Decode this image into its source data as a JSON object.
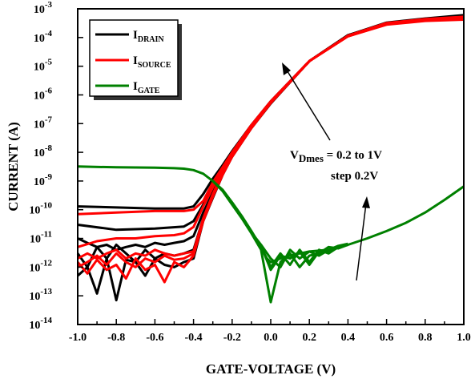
{
  "chart_data": {
    "type": "line",
    "xlabel": "GATE-VOLTAGE (V)",
    "ylabel": "CURRENT (A)",
    "xlim": [
      -1.0,
      1.0
    ],
    "ylim": [
      1e-14,
      0.001
    ],
    "yscale": "log",
    "grid": false,
    "legend_position": "top-left",
    "x_ticks": [
      "-1.0",
      "-0.8",
      "-0.6",
      "-0.4",
      "-0.2",
      "0.0",
      "0.2",
      "0.4",
      "0.6",
      "0.8",
      "1.0"
    ],
    "y_ticks": [
      {
        "base": "10",
        "exp": "-3"
      },
      {
        "base": "10",
        "exp": "-4"
      },
      {
        "base": "10",
        "exp": "-5"
      },
      {
        "base": "10",
        "exp": "-6"
      },
      {
        "base": "10",
        "exp": "-7"
      },
      {
        "base": "10",
        "exp": "-8"
      },
      {
        "base": "10",
        "exp": "-9"
      },
      {
        "base": "10",
        "exp": "-10"
      },
      {
        "base": "10",
        "exp": "-11"
      },
      {
        "base": "10",
        "exp": "-12"
      },
      {
        "base": "10",
        "exp": "-13"
      },
      {
        "base": "10",
        "exp": "-14"
      }
    ],
    "legend": [
      {
        "main": "I",
        "sub": "DRAIN",
        "color": "#000000"
      },
      {
        "main": "I",
        "sub": "SOURCE",
        "color": "#ff0000"
      },
      {
        "main": "I",
        "sub": "GATE",
        "color": "#008000"
      }
    ],
    "annotation": {
      "line1_main": "V",
      "line1_sub": "Dmes",
      "line1_rest": " = 0.2 to 1V",
      "line2": "step 0.2V"
    },
    "series": [
      {
        "legend_index": 0,
        "color": "#000000",
        "x": [
          -1.0,
          -0.8,
          -0.6,
          -0.45,
          -0.4,
          -0.35,
          -0.3,
          -0.25,
          -0.2,
          -0.1,
          0.0,
          0.2,
          0.4,
          0.6,
          0.8,
          1.0
        ],
        "y": [
          1.3e-10,
          1.2e-10,
          1.1e-10,
          1.1e-10,
          1.3e-10,
          3.5e-10,
          1.2e-09,
          3.5e-09,
          1.1e-08,
          9e-08,
          6e-07,
          1.5e-05,
          0.00012,
          0.0003,
          0.00042,
          0.0005
        ]
      },
      {
        "legend_index": 0,
        "color": "#000000",
        "x": [
          -1.0,
          -0.8,
          -0.6,
          -0.45,
          -0.4,
          -0.35,
          -0.3,
          -0.25,
          -0.2,
          -0.1,
          0.0,
          0.2,
          0.4,
          0.6,
          0.8,
          1.0
        ],
        "y": [
          3e-11,
          2e-11,
          2.2e-11,
          2.6e-11,
          4e-11,
          1.5e-10,
          6e-10,
          2.5e-09,
          9e-09,
          8.5e-08,
          5.8e-07,
          1.5e-05,
          0.00012,
          0.0003,
          0.00043,
          0.00052
        ]
      },
      {
        "legend_index": 0,
        "color": "#000000",
        "x": [
          -1.0,
          -0.95,
          -0.9,
          -0.85,
          -0.8,
          -0.75,
          -0.7,
          -0.65,
          -0.6,
          -0.55,
          -0.5,
          -0.45,
          -0.4,
          -0.35,
          -0.3,
          -0.25,
          -0.2,
          -0.1,
          0.0,
          0.2,
          0.4,
          0.6,
          0.8,
          1.0
        ],
        "y": [
          1e-11,
          7e-12,
          5e-12,
          6e-12,
          4e-12,
          5e-12,
          6e-12,
          5e-12,
          7e-12,
          6e-12,
          7e-12,
          8e-12,
          1.2e-11,
          8e-11,
          4e-10,
          2e-09,
          8e-09,
          8e-08,
          5.5e-07,
          1.5e-05,
          0.00012,
          0.00031,
          0.00044,
          0.00055
        ]
      },
      {
        "legend_index": 0,
        "color": "#000000",
        "x": [
          -1.0,
          -0.95,
          -0.9,
          -0.85,
          -0.8,
          -0.75,
          -0.7,
          -0.65,
          -0.6,
          -0.55,
          -0.5,
          -0.45,
          -0.4,
          -0.35,
          -0.3,
          -0.25,
          -0.2,
          -0.1,
          0.0,
          0.2,
          0.4,
          0.6,
          0.8,
          1.0
        ],
        "y": [
          3e-12,
          1e-12,
          5e-12,
          2e-12,
          6e-12,
          3e-12,
          1.5e-12,
          4e-12,
          2e-12,
          3e-12,
          2.5e-12,
          3e-12,
          4e-12,
          5e-11,
          3e-10,
          1.8e-09,
          7.5e-09,
          7.5e-08,
          5.3e-07,
          1.5e-05,
          0.00012,
          0.00032,
          0.00045,
          0.00058
        ]
      },
      {
        "legend_index": 0,
        "color": "#000000",
        "x": [
          -1.0,
          -0.95,
          -0.9,
          -0.85,
          -0.8,
          -0.75,
          -0.7,
          -0.65,
          -0.6,
          -0.55,
          -0.5,
          -0.45,
          -0.4,
          -0.35,
          -0.3,
          -0.25,
          -0.2,
          -0.1,
          0.0,
          0.2,
          0.4,
          0.6,
          0.8,
          1.0
        ],
        "y": [
          5e-13,
          1e-12,
          1.2e-13,
          2e-12,
          7e-14,
          1.8e-12,
          1.5e-12,
          5e-13,
          2e-12,
          1.2e-12,
          1e-12,
          1.5e-12,
          2e-12,
          4e-11,
          2.6e-10,
          1.6e-09,
          7e-09,
          7e-08,
          5e-07,
          1.5e-05,
          0.00012,
          0.00033,
          0.00046,
          0.0006
        ]
      },
      {
        "legend_index": 1,
        "color": "#ff0000",
        "x": [
          -1.0,
          -0.8,
          -0.6,
          -0.45,
          -0.4,
          -0.35,
          -0.3,
          -0.25,
          -0.2,
          -0.1,
          0.0,
          0.2,
          0.4,
          0.6,
          0.8,
          1.0
        ],
        "y": [
          7e-11,
          8e-11,
          9e-11,
          9e-11,
          1e-10,
          2e-10,
          9e-10,
          3e-09,
          1e-08,
          9e-08,
          6e-07,
          1.5e-05,
          0.00011,
          0.00028,
          0.00038,
          0.00042
        ]
      },
      {
        "legend_index": 1,
        "color": "#ff0000",
        "x": [
          -1.0,
          -0.9,
          -0.8,
          -0.7,
          -0.6,
          -0.5,
          -0.45,
          -0.4,
          -0.35,
          -0.3,
          -0.25,
          -0.2,
          -0.1,
          0.0,
          0.2,
          0.4,
          0.6,
          0.8,
          1.0
        ],
        "y": [
          5e-12,
          8e-12,
          1e-11,
          1e-11,
          1.2e-11,
          1.3e-11,
          1.5e-11,
          2.5e-11,
          1.3e-10,
          6e-10,
          2.3e-09,
          8.5e-09,
          8.5e-08,
          5.8e-07,
          1.5e-05,
          0.00011,
          0.00029,
          0.00039,
          0.00045
        ]
      },
      {
        "legend_index": 1,
        "color": "#ff0000",
        "x": [
          -1.0,
          -0.95,
          -0.9,
          -0.85,
          -0.8,
          -0.75,
          -0.7,
          -0.65,
          -0.6,
          -0.55,
          -0.5,
          -0.45,
          -0.4,
          -0.35,
          -0.3,
          -0.25,
          -0.2,
          -0.1,
          0.0,
          0.2,
          0.4,
          0.6,
          0.8,
          1.0
        ],
        "y": [
          2e-12,
          3e-12,
          2e-12,
          3e-12,
          4e-12,
          2e-12,
          3e-12,
          2.5e-12,
          4e-12,
          3e-12,
          2.5e-12,
          3e-12,
          3.5e-12,
          5e-11,
          3.5e-10,
          1.9e-09,
          8e-09,
          8e-08,
          5.6e-07,
          1.5e-05,
          0.00011,
          0.0003,
          0.0004,
          0.00047
        ]
      },
      {
        "legend_index": 1,
        "color": "#ff0000",
        "x": [
          -1.0,
          -0.95,
          -0.9,
          -0.85,
          -0.8,
          -0.75,
          -0.7,
          -0.65,
          -0.6,
          -0.55,
          -0.5,
          -0.45,
          -0.4,
          -0.35,
          -0.3,
          -0.25,
          -0.2,
          -0.1,
          0.0,
          0.2,
          0.4,
          0.6,
          0.8,
          1.0
        ],
        "y": [
          1e-12,
          1.5e-12,
          2.5e-12,
          1.2e-12,
          3e-12,
          1.5e-12,
          1e-12,
          2e-12,
          1.5e-12,
          2.5e-12,
          1.8e-12,
          2e-12,
          3e-12,
          4.5e-11,
          3e-10,
          1.7e-09,
          7.5e-09,
          7.5e-08,
          5.4e-07,
          1.5e-05,
          0.000115,
          0.00031,
          0.00042,
          0.0005
        ]
      },
      {
        "legend_index": 1,
        "color": "#ff0000",
        "x": [
          -1.0,
          -0.95,
          -0.9,
          -0.85,
          -0.8,
          -0.75,
          -0.7,
          -0.65,
          -0.6,
          -0.55,
          -0.5,
          -0.45,
          -0.4,
          -0.35,
          -0.3,
          -0.25,
          -0.2,
          -0.1,
          0.0,
          0.2,
          0.4,
          0.6,
          0.8,
          1.0
        ],
        "y": [
          1.5e-12,
          6e-13,
          1.8e-12,
          8e-13,
          1.2e-12,
          4e-13,
          2e-12,
          8e-13,
          1.2e-12,
          3e-13,
          1.5e-12,
          1e-12,
          2.5e-12,
          4e-11,
          2.8e-10,
          1.6e-09,
          7e-09,
          7e-08,
          5.2e-07,
          1.5e-05,
          0.000115,
          0.00032,
          0.00044,
          0.00053
        ]
      },
      {
        "legend_index": 2,
        "color": "#008000",
        "x": [
          -1.0,
          -0.8,
          -0.6,
          -0.5,
          -0.45,
          -0.4,
          -0.35,
          -0.3,
          -0.25,
          -0.2,
          -0.15,
          -0.1,
          -0.05,
          -0.02,
          0.0,
          0.05,
          0.1,
          0.15,
          0.2,
          0.3,
          0.4,
          0.5,
          0.6,
          0.7,
          0.8,
          0.9,
          1.0
        ],
        "y": [
          3.2e-09,
          3e-09,
          2.9e-09,
          2.8e-09,
          2.7e-09,
          2.4e-09,
          1.8e-09,
          1e-09,
          5e-10,
          1.8e-10,
          6e-11,
          1.8e-11,
          5e-12,
          2e-12,
          1.5e-12,
          2e-12,
          2.5e-12,
          3e-12,
          3.5e-12,
          4e-12,
          6e-12,
          1e-11,
          1.8e-11,
          3.5e-11,
          8e-11,
          2.2e-10,
          6.5e-10
        ]
      },
      {
        "legend_index": 2,
        "color": "#008000",
        "x": [
          -0.3,
          -0.25,
          -0.2,
          -0.15,
          -0.1,
          -0.05,
          0.0,
          0.05,
          0.1,
          0.15,
          0.2,
          0.25,
          0.3,
          0.35,
          0.4
        ],
        "y": [
          1e-09,
          4.5e-10,
          1.5e-10,
          5e-11,
          1.5e-11,
          4e-12,
          6e-14,
          1.5e-12,
          3e-12,
          1e-12,
          2.5e-12,
          3e-12,
          5e-12,
          4.5e-12,
          6e-12
        ]
      },
      {
        "legend_index": 2,
        "color": "#008000",
        "x": [
          -0.3,
          -0.25,
          -0.2,
          -0.15,
          -0.1,
          -0.05,
          0.0,
          0.05,
          0.1,
          0.15,
          0.2,
          0.25,
          0.3,
          0.35,
          0.4
        ],
        "y": [
          1e-09,
          4.8e-10,
          1.7e-10,
          5.5e-11,
          1.7e-11,
          5e-12,
          1e-12,
          3e-12,
          1.2e-12,
          4e-12,
          1.5e-12,
          4e-12,
          3e-12,
          5e-12,
          6e-12
        ]
      },
      {
        "legend_index": 2,
        "color": "#008000",
        "x": [
          -0.3,
          -0.25,
          -0.2,
          -0.15,
          -0.1,
          -0.05,
          0.0,
          0.05,
          0.1,
          0.15,
          0.2,
          0.25,
          0.3,
          0.35,
          0.4
        ],
        "y": [
          1e-09,
          4.6e-10,
          1.6e-10,
          5.2e-11,
          1.6e-11,
          6e-12,
          2e-12,
          1e-12,
          4e-12,
          2e-12,
          3.5e-12,
          2.5e-12,
          4e-12,
          5.5e-12,
          6.5e-12
        ]
      },
      {
        "legend_index": 2,
        "color": "#008000",
        "x": [
          -0.3,
          -0.25,
          -0.2,
          -0.15,
          -0.1,
          -0.05,
          0.0,
          0.05,
          0.1,
          0.15,
          0.2,
          0.25,
          0.3,
          0.35,
          0.4
        ],
        "y": [
          1e-09,
          4.7e-10,
          1.6e-10,
          5.3e-11,
          1.6e-11,
          5.5e-12,
          8e-13,
          2.5e-12,
          2e-12,
          3.5e-12,
          1.2e-12,
          3.5e-12,
          3.5e-12,
          4.8e-12,
          6.2e-12
        ]
      }
    ]
  }
}
